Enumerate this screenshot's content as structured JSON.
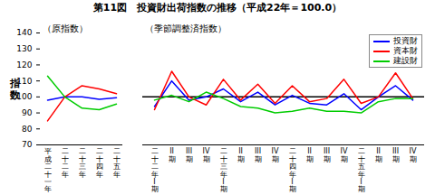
{
  "chart_data": [
    {
      "type": "line",
      "title": "第11図　投資財出荷指数の推移（平成22年＝100.0）",
      "subtitle": "（原指数）",
      "y_label": "指数",
      "categories": [
        "平成二十一年",
        "二十二年",
        "二十三年",
        "二十四年",
        "二十五年"
      ],
      "series": [
        {
          "name": "投資財",
          "color": "#0000ff",
          "values": [
            98,
            100,
            100,
            98.5,
            99.5
          ]
        },
        {
          "name": "資本財",
          "color": "#ff0000",
          "values": [
            85,
            100,
            107,
            105,
            102
          ]
        },
        {
          "name": "建設財",
          "color": "#00cc00",
          "values": [
            113,
            100,
            93,
            92,
            95.5
          ]
        }
      ],
      "ylim": [
        70,
        140
      ],
      "yticks": [
        70,
        80,
        90,
        100,
        110,
        120,
        130,
        140
      ]
    },
    {
      "type": "line",
      "subtitle": "（季節調整済指数）",
      "categories": [
        "二十二年I期",
        "II期",
        "III期",
        "IV期",
        "二十三年I期",
        "II期",
        "III期",
        "IV期",
        "二十四年I期",
        "II期",
        "III期",
        "IV期",
        "二十五年I期",
        "II期",
        "III期",
        "IV期"
      ],
      "series": [
        {
          "name": "投資財",
          "color": "#0000ff",
          "values": [
            94,
            110,
            98,
            100,
            105,
            97,
            103,
            95,
            101,
            96,
            95,
            102,
            92,
            100,
            107,
            98
          ]
        },
        {
          "name": "資本財",
          "color": "#ff0000",
          "values": [
            92,
            116,
            100,
            95,
            111,
            98,
            108,
            96,
            107,
            97,
            99,
            111,
            96,
            100,
            115,
            99
          ]
        },
        {
          "name": "建設財",
          "color": "#00cc00",
          "values": [
            98,
            101,
            97,
            103,
            99,
            94,
            93,
            90,
            91,
            93,
            91,
            91,
            90,
            97,
            99,
            99
          ]
        }
      ],
      "ylim": [
        70,
        140
      ],
      "baseline": 100,
      "tick_labels": "x",
      "legend": "top-right"
    }
  ]
}
